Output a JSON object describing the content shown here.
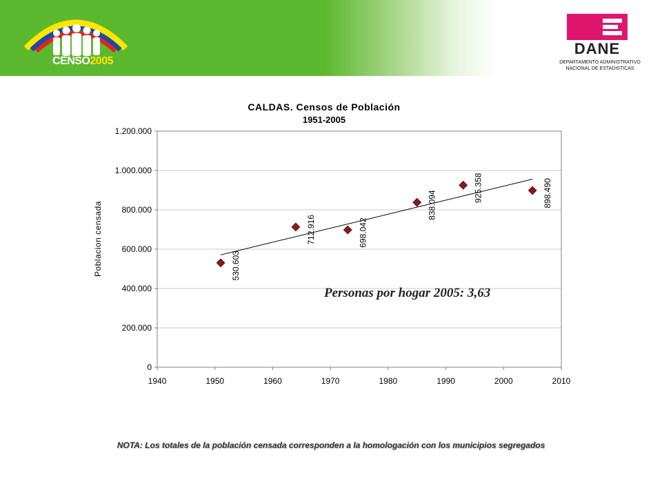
{
  "header": {
    "censo_text_main": "CENSO",
    "censo_text_year": "2005",
    "dane_name": "DANE",
    "dane_subtitle_line1": "DEPARTAMENTO ADMINISTRATIVO",
    "dane_subtitle_line2": "NACIONAL DE ESTADISTICAS"
  },
  "colors": {
    "banner_green": "#5cb82f",
    "dane_magenta": "#e0156e",
    "marker": "#8b1a1a",
    "gridline": "#c8c8c8"
  },
  "chart_data": {
    "type": "scatter",
    "title": "CALDAS. Censos de Población",
    "subtitle": "1951-2005",
    "xlabel": "",
    "ylabel": "Poblacion censada",
    "xlim": [
      1940,
      2010
    ],
    "ylim": [
      0,
      1200000
    ],
    "x_ticks": [
      "1940",
      "1950",
      "1960",
      "1970",
      "1980",
      "1990",
      "2000",
      "2010"
    ],
    "y_ticks": [
      "0",
      "200.000",
      "400.000",
      "600.000",
      "800.000",
      "1.000.000",
      "1.200.000"
    ],
    "grid": "horizontal",
    "trendline": "linear",
    "points": [
      {
        "x": 1951,
        "y": 530603,
        "label": "530.603"
      },
      {
        "x": 1964,
        "y": 712916,
        "label": "712.916"
      },
      {
        "x": 1973,
        "y": 698042,
        "label": "698.042"
      },
      {
        "x": 1985,
        "y": 838094,
        "label": "838.094"
      },
      {
        "x": 1993,
        "y": 925358,
        "label": "925.358"
      },
      {
        "x": 2005,
        "y": 898490,
        "label": "898.490"
      }
    ]
  },
  "annotation": "Personas por hogar 2005: 3,63",
  "note": "NOTA: Los totales de la población censada corresponden a la homologación con los municipios segregados"
}
